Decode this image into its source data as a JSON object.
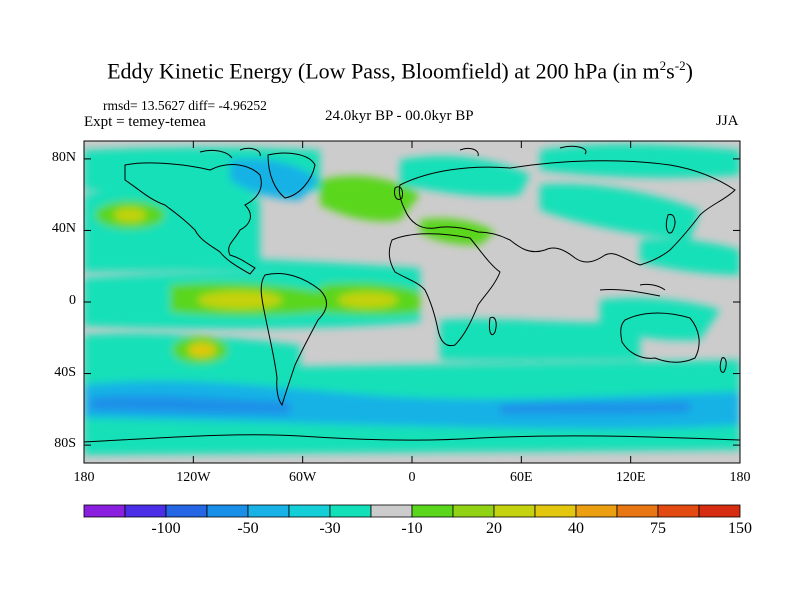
{
  "title": {
    "main": "Eddy Kinetic Energy (Low Pass, Bloomfield) at 200 hPa (in m",
    "sup1": "2",
    "mid": "s",
    "sup2": "-2",
    "end": ")"
  },
  "stats": "rmsd= 13.5627 diff= -4.96252",
  "experiment": "Expt = temey-temea",
  "period": "24.0kyr BP - 00.0kyr BP",
  "season": "JJA",
  "map": {
    "lat_labels": [
      "80N",
      "40N",
      "0",
      "40S",
      "80S"
    ],
    "lat_values": [
      80,
      40,
      0,
      -40,
      -80
    ],
    "lon_labels": [
      "180",
      "120W",
      "60W",
      "0",
      "60E",
      "120E",
      "180"
    ],
    "lon_values": [
      -180,
      -120,
      -60,
      0,
      60,
      120,
      180
    ]
  },
  "colorbar": {
    "colors": [
      "#8a1fe0",
      "#4a2ee8",
      "#2466e4",
      "#1a8fe8",
      "#19b2e6",
      "#14cfd8",
      "#12e0b8",
      "#cccccc",
      "#5ad61c",
      "#92d214",
      "#c5d20f",
      "#e3c70f",
      "#eca011",
      "#e87612",
      "#e34a12",
      "#d62d10"
    ],
    "labels": [
      "-100",
      "-50",
      "-30",
      "-10",
      "20",
      "40",
      "75",
      "150"
    ]
  },
  "field_colors": {
    "background": "#cccccc",
    "light_cyan": "#12e0b8",
    "cyan": "#19b2e6",
    "blue": "#1a8fe8",
    "green": "#5ad61c",
    "yellow_green": "#c5d20f",
    "yellow": "#e3c70f"
  }
}
